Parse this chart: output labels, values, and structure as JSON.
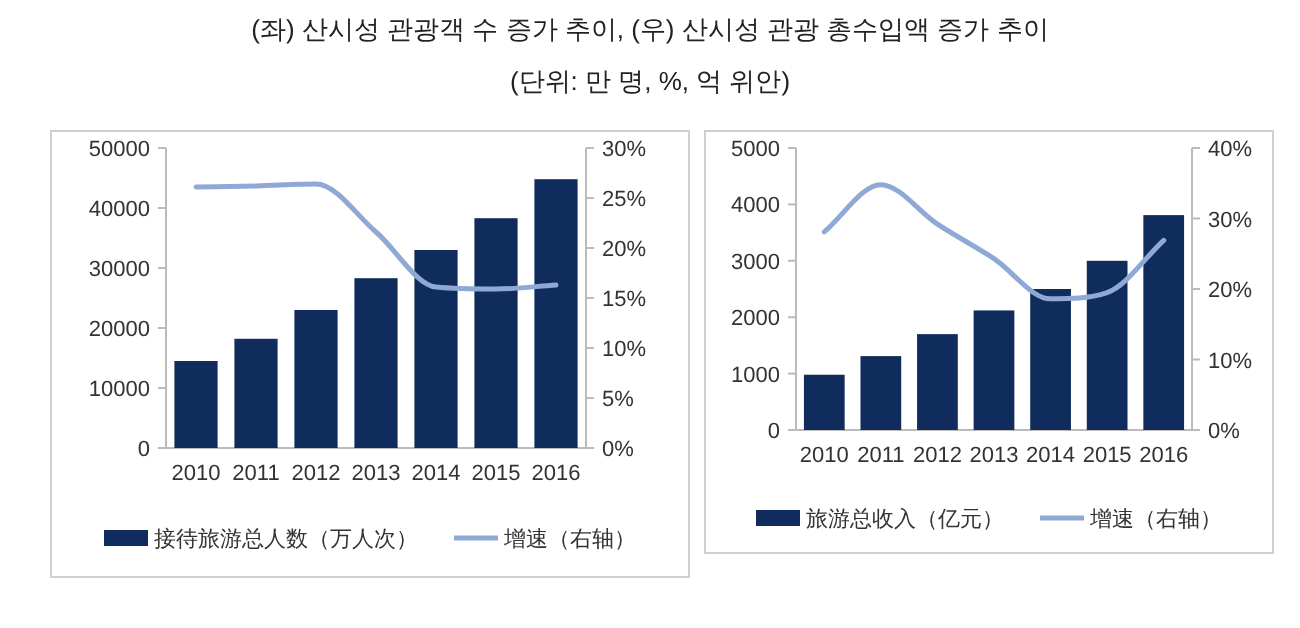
{
  "chart_data": [
    {
      "type": "bar",
      "title": "(좌) 산시성 관광객 수 증가 추이, (우) 산시성 관광 총수입액 증가 추이",
      "subtitle": "(단위: 만 명, %, 억 위안)",
      "categories": [
        "2010",
        "2011",
        "2012",
        "2013",
        "2014",
        "2015",
        "2016"
      ],
      "series": [
        {
          "name": "接待旅游总人数（万人次）",
          "color": "#0f2c5c",
          "values": [
            14500,
            18200,
            23000,
            28300,
            33000,
            38300,
            44800
          ]
        },
        {
          "name": "增速（右轴）",
          "type": "line",
          "axis": "y2",
          "color": "#8fa9d6",
          "values": [
            26.1,
            26.2,
            26.4,
            21.6,
            16.1,
            15.9,
            16.3
          ]
        }
      ],
      "ylim": [
        0,
        50000
      ],
      "yticks": [
        0,
        10000,
        20000,
        30000,
        40000,
        50000
      ],
      "y2lim": [
        0,
        30
      ],
      "y2ticks": [
        {
          "value": 0,
          "label": "0%"
        },
        {
          "value": 5,
          "label": "5%"
        },
        {
          "value": 10,
          "label": "10%"
        },
        {
          "value": 15,
          "label": "15%"
        },
        {
          "value": 20,
          "label": "20%"
        },
        {
          "value": 25,
          "label": "25%"
        },
        {
          "value": 30,
          "label": "30%"
        }
      ],
      "grid": false,
      "legend": "bottom",
      "marker": "none"
    },
    {
      "type": "bar",
      "categories": [
        "2010",
        "2011",
        "2012",
        "2013",
        "2014",
        "2015",
        "2016"
      ],
      "series": [
        {
          "name": "旅游总收入（亿元）",
          "color": "#0f2c5c",
          "values": [
            980,
            1310,
            1700,
            2120,
            2500,
            3000,
            3810
          ]
        },
        {
          "name": "增速（右轴）",
          "type": "line",
          "axis": "y2",
          "color": "#8fa9d6",
          "values": [
            28.1,
            34.8,
            29.2,
            24.3,
            18.6,
            19.5,
            26.9
          ]
        }
      ],
      "ylim": [
        0,
        5000
      ],
      "yticks": [
        0,
        1000,
        2000,
        3000,
        4000,
        5000
      ],
      "y2lim": [
        0,
        40
      ],
      "y2ticks": [
        {
          "value": 0,
          "label": "0%"
        },
        {
          "value": 10,
          "label": "10%"
        },
        {
          "value": 20,
          "label": "20%"
        },
        {
          "value": 30,
          "label": "30%"
        },
        {
          "value": 40,
          "label": "40%"
        }
      ],
      "grid": false,
      "legend": "bottom",
      "marker": "none"
    }
  ]
}
